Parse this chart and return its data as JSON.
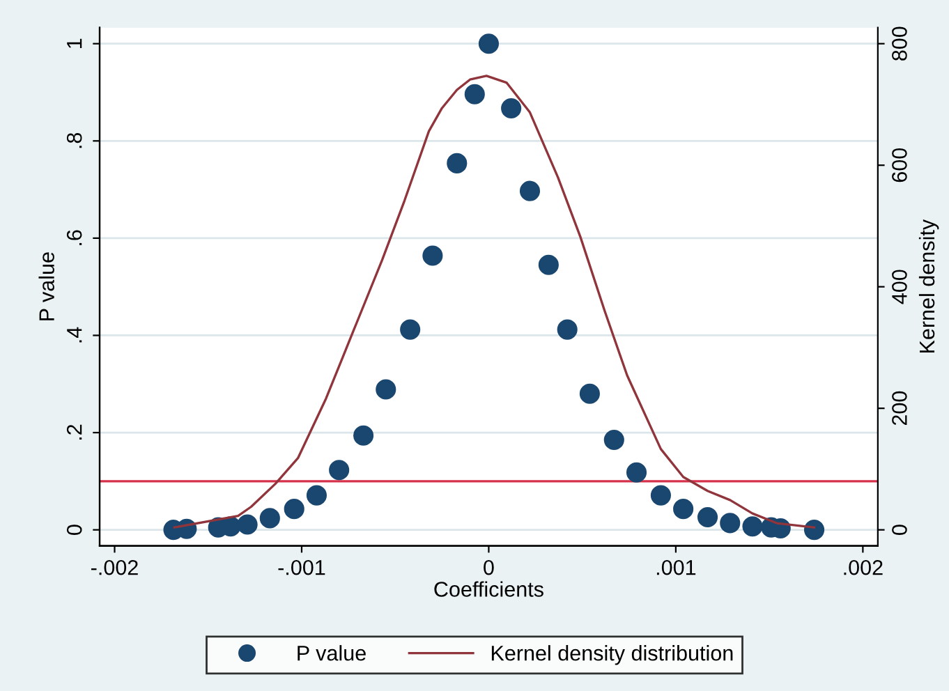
{
  "chart_data": {
    "type": "scatter",
    "xlabel": "Coefficients",
    "ylabel": "P value",
    "y2label": "Kernel density",
    "xlim": [
      -0.00208,
      0.00208
    ],
    "ylim": [
      -0.033,
      1.033
    ],
    "y2lim": [
      -26.4,
      826.4
    ],
    "xticks": [
      {
        "value": -0.002,
        "label": "-.002"
      },
      {
        "value": -0.001,
        "label": "-.001"
      },
      0,
      {
        "value": 0.001,
        "label": ".001"
      },
      {
        "value": 0.002,
        "label": ".002"
      }
    ],
    "yticks": [
      0,
      {
        "value": 0.2,
        "label": ".2"
      },
      {
        "value": 0.4,
        "label": ".4"
      },
      {
        "value": 0.6,
        "label": ".6"
      },
      {
        "value": 0.8,
        "label": ".8"
      },
      1
    ],
    "y2ticks": [
      0,
      200,
      400,
      600,
      800
    ],
    "grid": "y",
    "legend": "bottom",
    "ref_lines": [
      {
        "axis": "y",
        "value": 0.1,
        "color": "#d6304a"
      }
    ],
    "series": [
      {
        "name": "P value",
        "marker": "circle",
        "color": "#1a476f",
        "x": [
          -0.001685,
          -0.001615,
          -0.001446,
          -0.00138,
          -0.00129,
          -0.00117,
          -0.00104,
          -0.00092,
          -0.0008,
          -0.00067,
          -0.00055,
          -0.00042,
          -0.0003,
          -0.00017,
          -7.5e-05,
          0,
          0.00012,
          0.00022,
          0.00032,
          0.00042,
          0.00054,
          0.00067,
          0.00079,
          0.00092,
          0.00104,
          0.00117,
          0.00129,
          0.00141,
          0.00151,
          0.00156,
          0.00174
        ],
        "values": [
          0,
          0.002,
          0.005,
          0.007,
          0.011,
          0.024,
          0.043,
          0.071,
          0.123,
          0.194,
          0.289,
          0.412,
          0.564,
          0.754,
          0.896,
          1,
          0.867,
          0.697,
          0.545,
          0.412,
          0.28,
          0.185,
          0.118,
          0.071,
          0.043,
          0.026,
          0.014,
          0.007,
          0.005,
          0.003,
          0
        ]
      },
      {
        "name": "Kernel density distribution",
        "type": "line",
        "axis": "y2",
        "color": "#90353b",
        "x": [
          -0.00168,
          -0.00134,
          -0.00127,
          -0.00114,
          -0.00102,
          -0.00087,
          -0.00072,
          -0.00057,
          -0.00045,
          -0.00032,
          -0.00025,
          -0.00017,
          -0.0001,
          -1.2e-05,
          9.5e-05,
          0.00022,
          0.00037,
          0.00049,
          0.00062,
          0.00074,
          0.00092,
          0.00104,
          0.00117,
          0.00129,
          0.00141,
          0.00154,
          0.00174
        ],
        "values": [
          4,
          23,
          38,
          76,
          118,
          216,
          330,
          444,
          542,
          656,
          694,
          724,
          741,
          747,
          736,
          687,
          580,
          482,
          360,
          254,
          133,
          87,
          64,
          49,
          27,
          11,
          4
        ]
      }
    ]
  }
}
